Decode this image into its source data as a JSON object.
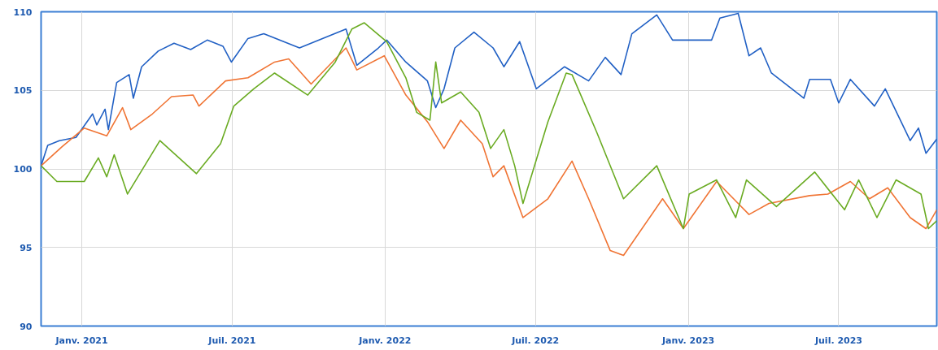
{
  "chart_data": {
    "type": "line",
    "xlim": [
      "2020-11-13",
      "2023-10-27"
    ],
    "ylim": [
      90,
      110
    ],
    "yticks": [
      90,
      95,
      100,
      105,
      110
    ],
    "xticks": [
      {
        "value": "2021-01-01",
        "label": "Janv. 2021"
      },
      {
        "value": "2021-07-01",
        "label": "Juil. 2021"
      },
      {
        "value": "2022-01-01",
        "label": "Janv. 2022"
      },
      {
        "value": "2022-07-01",
        "label": "Juil. 2022"
      },
      {
        "value": "2023-01-01",
        "label": "Janv. 2023"
      },
      {
        "value": "2023-07-01",
        "label": "Juil. 2023"
      }
    ],
    "grid": true,
    "marker": "none",
    "line_style": "solid",
    "series": [
      {
        "color": "#2160c4",
        "x": [
          "2020-11-13",
          "2020-11-21",
          "2020-12-05",
          "2020-12-25",
          "2021-01-14",
          "2021-01-19",
          "2021-01-29",
          "2021-02-02",
          "2021-02-12",
          "2021-02-27",
          "2021-03-04",
          "2021-03-14",
          "2021-04-03",
          "2021-04-22",
          "2021-05-12",
          "2021-06-01",
          "2021-06-20",
          "2021-06-30",
          "2021-07-20",
          "2021-08-08",
          "2021-09-20",
          "2021-11-15",
          "2021-11-28",
          "2021-12-24",
          "2022-01-03",
          "2022-01-26",
          "2022-02-21",
          "2022-03-03",
          "2022-03-13",
          "2022-03-26",
          "2022-04-18",
          "2022-05-11",
          "2022-05-24",
          "2022-06-12",
          "2022-07-02",
          "2022-08-05",
          "2022-09-03",
          "2022-09-23",
          "2022-10-12",
          "2022-10-25",
          "2022-11-24",
          "2022-12-13",
          "2023-01-29",
          "2023-02-08",
          "2023-03-02",
          "2023-03-15",
          "2023-03-29",
          "2023-04-11",
          "2023-05-20",
          "2023-05-27",
          "2023-06-21",
          "2023-07-01",
          "2023-07-15",
          "2023-08-13",
          "2023-08-26",
          "2023-09-25",
          "2023-10-05",
          "2023-10-14",
          "2023-10-27"
        ],
        "values": [
          100.2,
          101.5,
          101.8,
          102.0,
          103.5,
          102.8,
          103.8,
          102.5,
          105.5,
          106.0,
          104.5,
          106.5,
          107.5,
          108.0,
          107.6,
          108.2,
          107.8,
          106.8,
          108.3,
          108.6,
          107.7,
          108.9,
          106.6,
          107.7,
          108.2,
          106.8,
          105.6,
          103.9,
          105.1,
          107.7,
          108.7,
          107.7,
          106.5,
          108.1,
          105.1,
          106.5,
          105.6,
          107.1,
          106.0,
          108.6,
          109.8,
          108.2,
          108.2,
          109.6,
          109.9,
          107.2,
          107.7,
          106.1,
          104.5,
          105.7,
          105.7,
          104.2,
          105.7,
          104.0,
          105.1,
          101.8,
          102.6,
          101.0,
          101.9
        ]
      },
      {
        "color": "#f07434",
        "x": [
          "2020-11-13",
          "2020-12-08",
          "2021-01-04",
          "2021-01-31",
          "2021-02-19",
          "2021-03-01",
          "2021-03-27",
          "2021-04-19",
          "2021-05-15",
          "2021-05-22",
          "2021-06-23",
          "2021-07-20",
          "2021-08-21",
          "2021-09-07",
          "2021-10-04",
          "2021-11-15",
          "2021-11-28",
          "2021-12-31",
          "2022-01-26",
          "2022-02-21",
          "2022-03-13",
          "2022-04-02",
          "2022-04-28",
          "2022-05-11",
          "2022-05-24",
          "2022-06-16",
          "2022-07-16",
          "2022-08-14",
          "2022-09-03",
          "2022-09-29",
          "2022-10-15",
          "2022-12-01",
          "2022-12-26",
          "2023-02-04",
          "2023-03-15",
          "2023-04-08",
          "2023-05-27",
          "2023-06-18",
          "2023-07-15",
          "2023-08-07",
          "2023-08-29",
          "2023-09-25",
          "2023-10-14",
          "2023-10-27"
        ],
        "values": [
          100.2,
          101.4,
          102.6,
          102.1,
          103.9,
          102.5,
          103.5,
          104.6,
          104.7,
          104.0,
          105.6,
          105.8,
          106.8,
          107.0,
          105.4,
          107.7,
          106.3,
          107.2,
          104.7,
          103.0,
          101.3,
          103.1,
          101.6,
          99.5,
          100.2,
          96.9,
          98.1,
          100.5,
          98.1,
          94.8,
          94.5,
          98.1,
          96.2,
          99.2,
          97.1,
          97.8,
          98.3,
          98.4,
          99.2,
          98.1,
          98.8,
          96.9,
          96.2,
          97.4
        ]
      },
      {
        "color": "#6aab22",
        "x": [
          "2020-11-13",
          "2020-12-02",
          "2021-01-04",
          "2021-01-21",
          "2021-01-31",
          "2021-02-09",
          "2021-02-25",
          "2021-04-05",
          "2021-05-19",
          "2021-06-17",
          "2021-07-03",
          "2021-07-27",
          "2021-08-21",
          "2021-09-30",
          "2021-11-02",
          "2021-11-22",
          "2021-12-07",
          "2022-01-03",
          "2022-01-26",
          "2022-02-08",
          "2022-02-24",
          "2022-03-03",
          "2022-03-10",
          "2022-04-02",
          "2022-04-24",
          "2022-05-08",
          "2022-05-24",
          "2022-06-06",
          "2022-06-16",
          "2022-07-16",
          "2022-08-07",
          "2022-08-14",
          "2022-09-13",
          "2022-10-15",
          "2022-11-24",
          "2022-12-26",
          "2023-01-02",
          "2023-02-04",
          "2023-02-27",
          "2023-03-12",
          "2023-04-17",
          "2023-06-02",
          "2023-07-08",
          "2023-07-25",
          "2023-08-16",
          "2023-09-08",
          "2023-10-08",
          "2023-10-17",
          "2023-10-27"
        ],
        "values": [
          100.2,
          99.2,
          99.2,
          100.7,
          99.5,
          100.9,
          98.4,
          101.8,
          99.7,
          101.6,
          104.0,
          105.1,
          106.1,
          104.7,
          106.8,
          108.9,
          109.3,
          108.1,
          105.8,
          103.6,
          103.1,
          106.8,
          104.2,
          104.9,
          103.6,
          101.3,
          102.5,
          100.2,
          97.8,
          103.0,
          106.1,
          106.0,
          102.3,
          98.1,
          100.2,
          96.2,
          98.4,
          99.3,
          96.9,
          99.3,
          97.6,
          99.8,
          97.4,
          99.3,
          96.9,
          99.3,
          98.4,
          96.2,
          96.7
        ]
      }
    ]
  }
}
